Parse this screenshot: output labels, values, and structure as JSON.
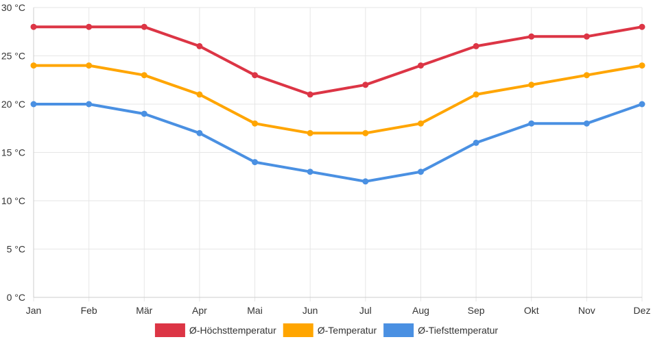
{
  "chart_data": {
    "type": "line",
    "categories": [
      "Jan",
      "Feb",
      "Mär",
      "Apr",
      "Mai",
      "Jun",
      "Jul",
      "Aug",
      "Sep",
      "Okt",
      "Nov",
      "Dez"
    ],
    "y_unit": "°C",
    "ylim": [
      0,
      30
    ],
    "y_ticks": [
      0,
      5,
      10,
      15,
      20,
      25,
      30
    ],
    "y_tick_labels": [
      "0 °C",
      "5 °C",
      "10 °C",
      "15 °C",
      "20 °C",
      "25 °C",
      "30 °C"
    ],
    "grid": true,
    "legend_position": "bottom-center",
    "series": [
      {
        "name": "Ø-Höchsttemperatur",
        "color": "#dc3545",
        "values": [
          28,
          28,
          28,
          26,
          23,
          21,
          22,
          24,
          26,
          27,
          27,
          28
        ]
      },
      {
        "name": "Ø-Temperatur",
        "color": "#ffa500",
        "values": [
          24,
          24,
          23,
          21,
          18,
          17,
          17,
          18,
          21,
          22,
          23,
          24
        ]
      },
      {
        "name": "Ø-Tiefsttemperatur",
        "color": "#4a90e2",
        "values": [
          20,
          20,
          19,
          17,
          14,
          13,
          12,
          13,
          16,
          18,
          18,
          20
        ]
      }
    ]
  }
}
